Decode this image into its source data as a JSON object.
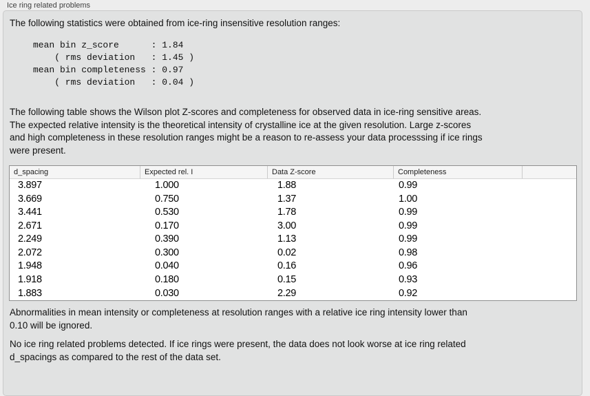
{
  "panel": {
    "title": "Ice ring related problems"
  },
  "intro_text": "The following statistics were obtained from ice-ring insensitive resolution ranges:",
  "stats_block": "mean bin z_score      : 1.84\n    ( rms deviation   : 1.45 )\nmean bin completeness : 0.97\n    ( rms deviation   : 0.04 )",
  "stats_values": {
    "mean_bin_z_score": "1.84",
    "z_score_rms_deviation": "1.45",
    "mean_bin_completeness": "0.97",
    "completeness_rms_deviation": "0.04"
  },
  "table_description": "The following table shows the Wilson plot Z-scores and completeness for observed data in ice-ring sensitive areas.\nThe expected relative intensity is the theoretical intensity of crystalline ice at the given resolution. Large z-scores\nand high completeness in these resolution ranges might be a reason to re-assess your data processsing if ice rings\nwere present.",
  "table": {
    "headers": [
      "d_spacing",
      "Expected rel. I",
      "Data Z-score",
      "Completeness",
      ""
    ],
    "rows": [
      [
        "3.897",
        "1.000",
        "1.88",
        "0.99"
      ],
      [
        "3.669",
        "0.750",
        "1.37",
        "1.00"
      ],
      [
        "3.441",
        "0.530",
        "1.78",
        "0.99"
      ],
      [
        "2.671",
        "0.170",
        "3.00",
        "0.99"
      ],
      [
        "2.249",
        "0.390",
        "1.13",
        "0.99"
      ],
      [
        "2.072",
        "0.300",
        "0.02",
        "0.98"
      ],
      [
        "1.948",
        "0.040",
        "0.16",
        "0.96"
      ],
      [
        "1.918",
        "0.180",
        "0.15",
        "0.93"
      ],
      [
        "1.883",
        "0.030",
        "2.29",
        "0.92"
      ]
    ]
  },
  "ignore_note": "Abnormalities in mean intensity or completeness at resolution ranges with a relative ice ring intensity lower than\n0.10 will be ignored.",
  "conclusion": "No ice ring related problems detected. If ice rings were present, the data does not look worse at ice ring related\nd_spacings as compared to the rest of the data set.",
  "colors": {
    "page_background": "#ededed",
    "panel_background": "#e1e2e2",
    "panel_border": "#c9c9c9",
    "table_background": "#ffffff",
    "table_border": "#8f8f8f",
    "header_background": "#f5f5f5"
  }
}
